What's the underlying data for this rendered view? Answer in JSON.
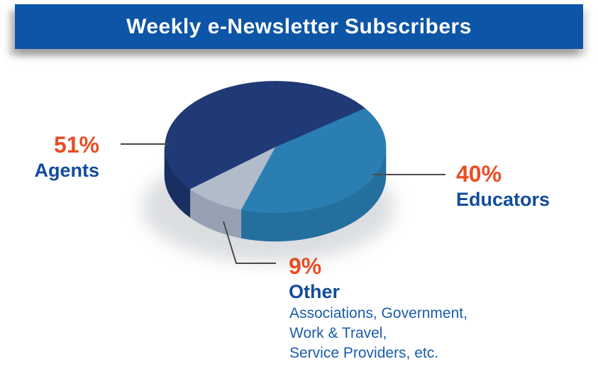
{
  "banner": {
    "title": "Weekly e-Newsletter Subscribers",
    "bg_color": "#0D55A6",
    "text_color": "#FFFFFF"
  },
  "chart_data": {
    "type": "pie",
    "style": "3d",
    "title": "Weekly e-Newsletter Subscribers",
    "legend": "none",
    "labels_outside": true,
    "slices": [
      {
        "label": "Agents",
        "value_pct": 51,
        "top_color": "#1F3A76",
        "side_color": "#192F61"
      },
      {
        "label": "Educators",
        "value_pct": 40,
        "top_color": "#2A7EB2",
        "side_color": "#236F9E"
      },
      {
        "label": "Other",
        "value_pct": 9,
        "top_color": "#B2BBC9",
        "side_color": "#96A1B3",
        "sublabel": "Associations, Government, Work & Travel, Service Providers, etc."
      }
    ]
  },
  "callouts": {
    "agents": {
      "pct": "51%",
      "name": "Agents"
    },
    "educators": {
      "pct": "40%",
      "name": "Educators"
    },
    "other": {
      "pct": "9%",
      "name": "Other",
      "note_lines": [
        "Associations, Government,",
        "Work & Travel,",
        "Service Providers, etc."
      ]
    }
  },
  "colors": {
    "pct_text": "#E84E25",
    "name_text": "#114C9C",
    "note_text": "#1A5CA8",
    "leader_line": "#4A4A4A"
  }
}
